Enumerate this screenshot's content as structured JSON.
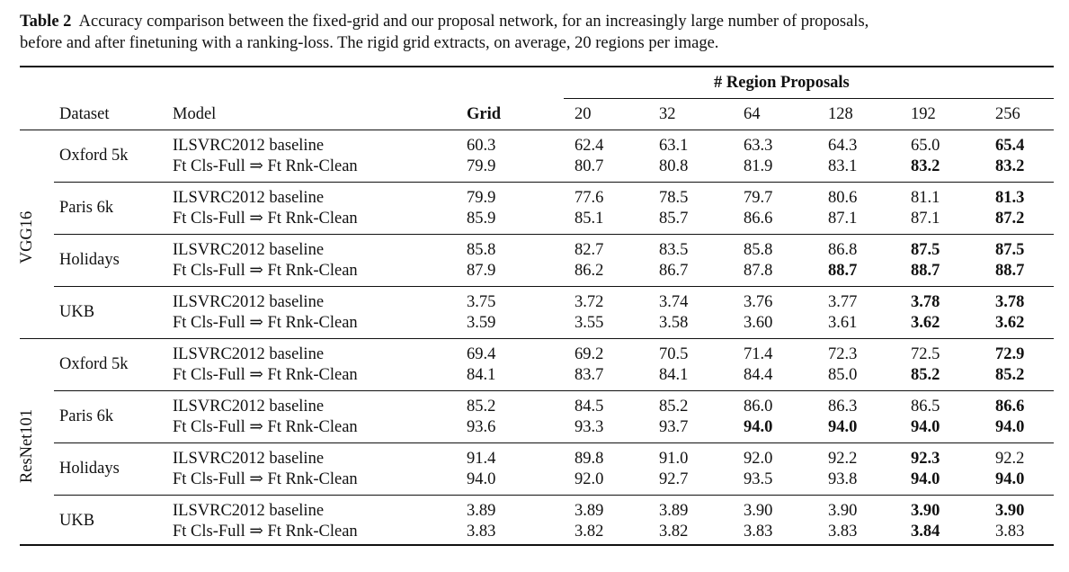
{
  "caption": {
    "label": "Table 2",
    "line1": "Accuracy comparison between the fixed-grid and our proposal network, for an increasingly large number of proposals,",
    "line2": "before and after finetuning with a ranking-loss. The rigid grid extracts, on average, 20 regions per image."
  },
  "header": {
    "super": "# Region Proposals",
    "dataset": "Dataset",
    "model": "Model",
    "grid": "Grid",
    "cols": [
      "20",
      "32",
      "64",
      "128",
      "192",
      "256"
    ]
  },
  "groups": [
    {
      "name": "VGG16",
      "datasets": [
        {
          "name": "Oxford 5k",
          "rows": [
            {
              "model": "ILSVRC2012 baseline",
              "values": [
                "60.3",
                "62.4",
                "63.1",
                "63.3",
                "64.3",
                "65.0",
                "65.4"
              ],
              "bold": [
                6
              ]
            },
            {
              "model": "Ft Cls-Full ⇒ Ft Rnk-Clean",
              "values": [
                "79.9",
                "80.7",
                "80.8",
                "81.9",
                "83.1",
                "83.2",
                "83.2"
              ],
              "bold": [
                5,
                6
              ]
            }
          ]
        },
        {
          "name": "Paris 6k",
          "rows": [
            {
              "model": "ILSVRC2012 baseline",
              "values": [
                "79.9",
                "77.6",
                "78.5",
                "79.7",
                "80.6",
                "81.1",
                "81.3"
              ],
              "bold": [
                6
              ]
            },
            {
              "model": "Ft Cls-Full ⇒ Ft Rnk-Clean",
              "values": [
                "85.9",
                "85.1",
                "85.7",
                "86.6",
                "87.1",
                "87.1",
                "87.2"
              ],
              "bold": [
                6
              ]
            }
          ]
        },
        {
          "name": "Holidays",
          "rows": [
            {
              "model": "ILSVRC2012 baseline",
              "values": [
                "85.8",
                "82.7",
                "83.5",
                "85.8",
                "86.8",
                "87.5",
                "87.5"
              ],
              "bold": [
                5,
                6
              ]
            },
            {
              "model": "Ft Cls-Full ⇒ Ft Rnk-Clean",
              "values": [
                "87.9",
                "86.2",
                "86.7",
                "87.8",
                "88.7",
                "88.7",
                "88.7"
              ],
              "bold": [
                4,
                5,
                6
              ]
            }
          ]
        },
        {
          "name": "UKB",
          "rows": [
            {
              "model": "ILSVRC2012 baseline",
              "values": [
                "3.75",
                "3.72",
                "3.74",
                "3.76",
                "3.77",
                "3.78",
                "3.78"
              ],
              "bold": [
                5,
                6
              ]
            },
            {
              "model": "Ft Cls-Full ⇒ Ft Rnk-Clean",
              "values": [
                "3.59",
                "3.55",
                "3.58",
                "3.60",
                "3.61",
                "3.62",
                "3.62"
              ],
              "bold": [
                5,
                6
              ]
            }
          ]
        }
      ]
    },
    {
      "name": "ResNet101",
      "datasets": [
        {
          "name": "Oxford 5k",
          "rows": [
            {
              "model": "ILSVRC2012 baseline",
              "values": [
                "69.4",
                "69.2",
                "70.5",
                "71.4",
                "72.3",
                "72.5",
                "72.9"
              ],
              "bold": [
                6
              ]
            },
            {
              "model": "Ft Cls-Full ⇒ Ft Rnk-Clean",
              "values": [
                "84.1",
                "83.7",
                "84.1",
                "84.4",
                "85.0",
                "85.2",
                "85.2"
              ],
              "bold": [
                5,
                6
              ]
            }
          ]
        },
        {
          "name": "Paris 6k",
          "rows": [
            {
              "model": "ILSVRC2012 baseline",
              "values": [
                "85.2",
                "84.5",
                "85.2",
                "86.0",
                "86.3",
                "86.5",
                "86.6"
              ],
              "bold": [
                6
              ]
            },
            {
              "model": "Ft Cls-Full ⇒ Ft Rnk-Clean",
              "values": [
                "93.6",
                "93.3",
                "93.7",
                "94.0",
                "94.0",
                "94.0",
                "94.0"
              ],
              "bold": [
                3,
                4,
                5,
                6
              ]
            }
          ]
        },
        {
          "name": "Holidays",
          "rows": [
            {
              "model": "ILSVRC2012 baseline",
              "values": [
                "91.4",
                "89.8",
                "91.0",
                "92.0",
                "92.2",
                "92.3",
                "92.2"
              ],
              "bold": [
                5
              ]
            },
            {
              "model": "Ft Cls-Full ⇒ Ft Rnk-Clean",
              "values": [
                "94.0",
                "92.0",
                "92.7",
                "93.5",
                "93.8",
                "94.0",
                "94.0"
              ],
              "bold": [
                5,
                6
              ]
            }
          ]
        },
        {
          "name": "UKB",
          "rows": [
            {
              "model": "ILSVRC2012 baseline",
              "values": [
                "3.89",
                "3.89",
                "3.89",
                "3.90",
                "3.90",
                "3.90",
                "3.90"
              ],
              "bold": [
                5,
                6
              ]
            },
            {
              "model": "Ft Cls-Full ⇒ Ft Rnk-Clean",
              "values": [
                "3.83",
                "3.82",
                "3.82",
                "3.83",
                "3.83",
                "3.84",
                "3.83"
              ],
              "bold": [
                5
              ]
            }
          ]
        }
      ]
    }
  ]
}
